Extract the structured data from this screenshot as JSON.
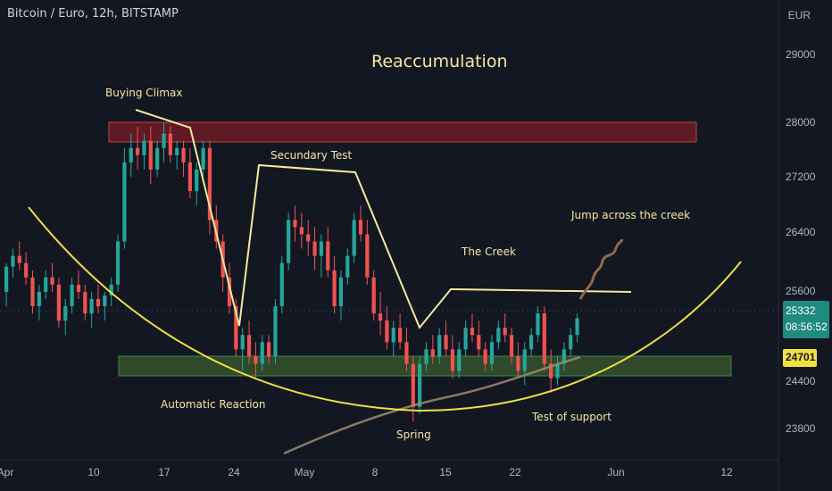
{
  "header": {
    "symbol": "Bitcoin / Euro, 12h, BITSTAMP",
    "currency": "EUR"
  },
  "price_badge": {
    "price": "25332",
    "countdown": "08:56:52"
  },
  "support_badge": {
    "value": "24701"
  },
  "colors": {
    "up": "#26a69a",
    "down": "#ef5350",
    "annotation": "#f5e9a0",
    "ma": "#9c8b6e",
    "resistance_zone": "#7a1c24",
    "support_zone": "#3b5a2e"
  },
  "chart_data": {
    "type": "candlestick",
    "title": "Reaccumulation",
    "y_ticks": [
      "29000",
      "28000",
      "27200",
      "26400",
      "25600",
      "24400",
      "23800"
    ],
    "x_ticks": [
      "Apr",
      "10",
      "17",
      "24",
      "May",
      "8",
      "15",
      "22",
      "Jun",
      "12"
    ],
    "ylim": [
      23300,
      29700
    ],
    "zones": [
      {
        "name": "resistance",
        "low": 27720,
        "high": 28000
      },
      {
        "name": "support",
        "low": 24500,
        "high": 24780
      }
    ],
    "annotations": [
      {
        "text": "Buying Climax"
      },
      {
        "text": "Secundary Test"
      },
      {
        "text": "The Creek"
      },
      {
        "text": "Jump across the creek"
      },
      {
        "text": "Automatic Reaction"
      },
      {
        "text": "Spring"
      },
      {
        "text": "Test of support"
      }
    ],
    "candles": [
      [
        25700,
        26100,
        25500,
        26050
      ],
      [
        26050,
        26300,
        25900,
        26200
      ],
      [
        26200,
        26400,
        26000,
        26100
      ],
      [
        26100,
        26250,
        25800,
        25900
      ],
      [
        25900,
        26000,
        25400,
        25500
      ],
      [
        25500,
        25800,
        25300,
        25700
      ],
      [
        25700,
        26000,
        25600,
        25900
      ],
      [
        25900,
        26100,
        25700,
        25800
      ],
      [
        25800,
        25900,
        25200,
        25300
      ],
      [
        25300,
        25600,
        25100,
        25500
      ],
      [
        25500,
        25900,
        25400,
        25800
      ],
      [
        25800,
        26000,
        25600,
        25700
      ],
      [
        25700,
        25800,
        25300,
        25400
      ],
      [
        25400,
        25700,
        25200,
        25600
      ],
      [
        25600,
        25800,
        25400,
        25500
      ],
      [
        25500,
        25700,
        25300,
        25650
      ],
      [
        25650,
        25900,
        25500,
        25800
      ],
      [
        25800,
        26500,
        25700,
        26400
      ],
      [
        26400,
        27700,
        26300,
        27500
      ],
      [
        27500,
        27900,
        27300,
        27700
      ],
      [
        27700,
        28000,
        27400,
        27600
      ],
      [
        27600,
        27900,
        27400,
        27800
      ],
      [
        27800,
        28000,
        27200,
        27400
      ],
      [
        27400,
        27800,
        27300,
        27700
      ],
      [
        27700,
        28050,
        27500,
        27900
      ],
      [
        27900,
        28000,
        27500,
        27600
      ],
      [
        27600,
        27800,
        27400,
        27700
      ],
      [
        27700,
        27800,
        27300,
        27500
      ],
      [
        27500,
        27700,
        27000,
        27100
      ],
      [
        27100,
        27500,
        26900,
        27400
      ],
      [
        27400,
        27800,
        27300,
        27700
      ],
      [
        27700,
        27800,
        26500,
        26700
      ],
      [
        26700,
        26900,
        26300,
        26400
      ],
      [
        26400,
        26500,
        25700,
        25900
      ],
      [
        25900,
        26100,
        25400,
        25500
      ],
      [
        25500,
        25600,
        24800,
        24900
      ],
      [
        24900,
        25200,
        24600,
        25100
      ],
      [
        25100,
        25300,
        24700,
        24800
      ],
      [
        24800,
        25000,
        24500,
        24700
      ],
      [
        24700,
        25100,
        24600,
        25000
      ],
      [
        25000,
        25100,
        24700,
        24800
      ],
      [
        24800,
        25600,
        24700,
        25500
      ],
      [
        25500,
        26200,
        25400,
        26100
      ],
      [
        26100,
        26800,
        26000,
        26700
      ],
      [
        26700,
        26900,
        26400,
        26600
      ],
      [
        26600,
        26800,
        26300,
        26500
      ],
      [
        26500,
        26700,
        26200,
        26400
      ],
      [
        26400,
        26600,
        26000,
        26200
      ],
      [
        26200,
        26500,
        25900,
        26400
      ],
      [
        26400,
        26600,
        25900,
        26000
      ],
      [
        26000,
        26200,
        25400,
        25500
      ],
      [
        25500,
        26000,
        25300,
        25900
      ],
      [
        25900,
        26300,
        25800,
        26200
      ],
      [
        26200,
        26800,
        26100,
        26700
      ],
      [
        26700,
        26900,
        26400,
        26500
      ],
      [
        26500,
        26700,
        25800,
        25900
      ],
      [
        25900,
        26000,
        25300,
        25400
      ],
      [
        25400,
        25700,
        25100,
        25300
      ],
      [
        25300,
        25500,
        24900,
        25000
      ],
      [
        25000,
        25300,
        24800,
        25200
      ],
      [
        25200,
        25400,
        24900,
        25000
      ],
      [
        25000,
        25200,
        24600,
        24700
      ],
      [
        24700,
        24800,
        23900,
        24100
      ],
      [
        24100,
        24800,
        24000,
        24700
      ],
      [
        24700,
        25000,
        24600,
        24900
      ],
      [
        24900,
        25100,
        24700,
        24800
      ],
      [
        24800,
        25200,
        24700,
        25100
      ],
      [
        25100,
        25300,
        24800,
        24900
      ],
      [
        24900,
        25100,
        24500,
        24600
      ],
      [
        24600,
        25000,
        24500,
        24900
      ],
      [
        24900,
        25300,
        24800,
        25200
      ],
      [
        25200,
        25400,
        25000,
        25100
      ],
      [
        25100,
        25300,
        24800,
        24900
      ],
      [
        24900,
        25000,
        24600,
        24700
      ],
      [
        24700,
        25100,
        24600,
        25000
      ],
      [
        25000,
        25300,
        24900,
        25200
      ],
      [
        25200,
        25400,
        25000,
        25100
      ],
      [
        25100,
        25200,
        24700,
        24800
      ],
      [
        24800,
        25000,
        24500,
        24600
      ],
      [
        24600,
        25000,
        24400,
        24900
      ],
      [
        24900,
        25200,
        24800,
        25100
      ],
      [
        25100,
        25500,
        25000,
        25400
      ],
      [
        25400,
        25500,
        24600,
        24700
      ],
      [
        24700,
        24900,
        24300,
        24500
      ],
      [
        24500,
        24800,
        24400,
        24700
      ],
      [
        24700,
        25000,
        24600,
        24900
      ],
      [
        24900,
        25200,
        24800,
        25100
      ],
      [
        25100,
        25400,
        25000,
        25332
      ]
    ]
  }
}
